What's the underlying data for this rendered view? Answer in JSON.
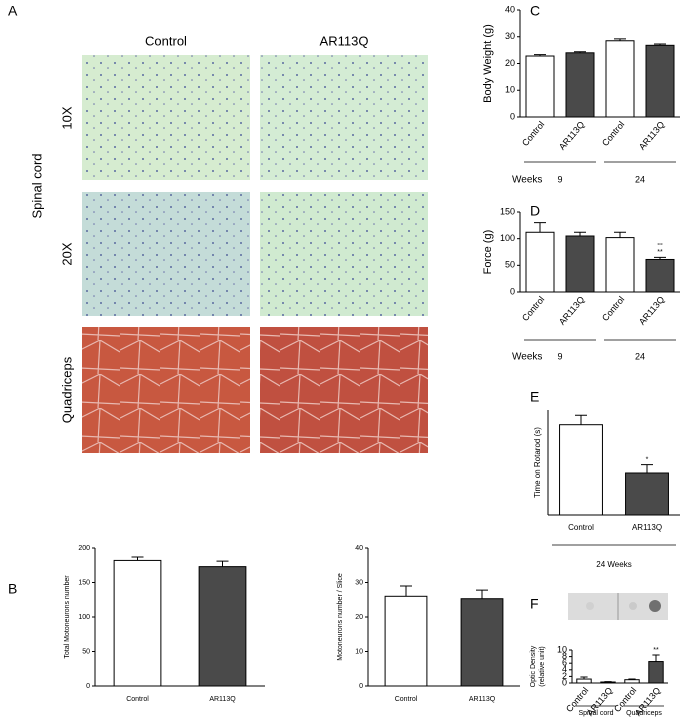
{
  "panels": [
    "A",
    "B",
    "C",
    "D",
    "E",
    "F"
  ],
  "micrographs": {
    "columns": [
      "Control",
      "AR113Q"
    ],
    "rows": [
      "10X",
      "20X",
      "Quadriceps"
    ],
    "row_group": "Spinal cord"
  },
  "chart_data": [
    {
      "type": "bar",
      "y_label": "Total Motoneurons number",
      "categories": [
        "Control",
        "AR113Q"
      ],
      "values": [
        182,
        173
      ],
      "errors": [
        5,
        8
      ],
      "colors": [
        "#ffffff",
        "#4a4a4a"
      ],
      "ylim": [
        0,
        200
      ],
      "yticks": [
        0,
        50,
        100,
        150,
        200
      ]
    },
    {
      "type": "bar",
      "y_label": "Motoneurons number / Slice",
      "categories": [
        "Control",
        "AR113Q"
      ],
      "values": [
        26,
        25.3
      ],
      "errors": [
        3,
        2.5
      ],
      "colors": [
        "#ffffff",
        "#4a4a4a"
      ],
      "ylim": [
        0,
        40
      ],
      "yticks": [
        0,
        10,
        20,
        30,
        40
      ]
    },
    {
      "type": "bar",
      "y_label": "Body Weight (g)",
      "categories": [
        "Control",
        "AR113Q",
        "Control",
        "AR113Q"
      ],
      "values": [
        22.8,
        24,
        28.5,
        26.8
      ],
      "errors": [
        0.5,
        0.4,
        0.7,
        0.5
      ],
      "colors": [
        "#ffffff",
        "#4a4a4a",
        "#ffffff",
        "#4a4a4a"
      ],
      "ylim": [
        0,
        40
      ],
      "yticks": [
        0,
        10,
        20,
        30,
        40
      ],
      "group_title": "Weeks",
      "groups": [
        "9",
        "24"
      ]
    },
    {
      "type": "bar",
      "y_label": "Force (g)",
      "categories": [
        "Control",
        "AR113Q",
        "Control",
        "AR113Q"
      ],
      "values": [
        112,
        105,
        102,
        61
      ],
      "errors": [
        18,
        7,
        10,
        4
      ],
      "colors": [
        "#ffffff",
        "#4a4a4a",
        "#ffffff",
        "#4a4a4a"
      ],
      "ylim": [
        0,
        150
      ],
      "yticks": [
        0,
        50,
        100,
        150
      ],
      "group_title": "Weeks",
      "groups": [
        "9",
        "24"
      ],
      "annotations": [
        null,
        null,
        null,
        [
          "°°",
          "**"
        ]
      ]
    },
    {
      "type": "bar",
      "y_label": "Time on Rotarod (s)",
      "categories": [
        "Control",
        "AR113Q"
      ],
      "values": [
        430,
        200
      ],
      "errors": [
        45,
        40
      ],
      "colors": [
        "#ffffff",
        "#4a4a4a"
      ],
      "ylim": [
        0,
        500
      ],
      "yticks": [],
      "groups": [
        "24 Weeks"
      ],
      "annotations": [
        null,
        [
          "*"
        ]
      ]
    },
    {
      "type": "bar",
      "y_label": [
        "Optic Density",
        "(relative unit)"
      ],
      "categories": [
        "Control",
        "AR113Q",
        "Control",
        "AR113Q"
      ],
      "values": [
        1.2,
        0.3,
        1.0,
        6.5
      ],
      "errors": [
        0.6,
        0.1,
        0.2,
        2
      ],
      "colors": [
        "#ffffff",
        "#4a4a4a",
        "#ffffff",
        "#4a4a4a"
      ],
      "ylim": [
        0,
        10
      ],
      "yticks": [
        0,
        2,
        4,
        6,
        8,
        10
      ],
      "groups": [
        "Spinal cord",
        "Quadriceps"
      ],
      "annotations": [
        null,
        null,
        null,
        [
          "**"
        ]
      ]
    }
  ]
}
